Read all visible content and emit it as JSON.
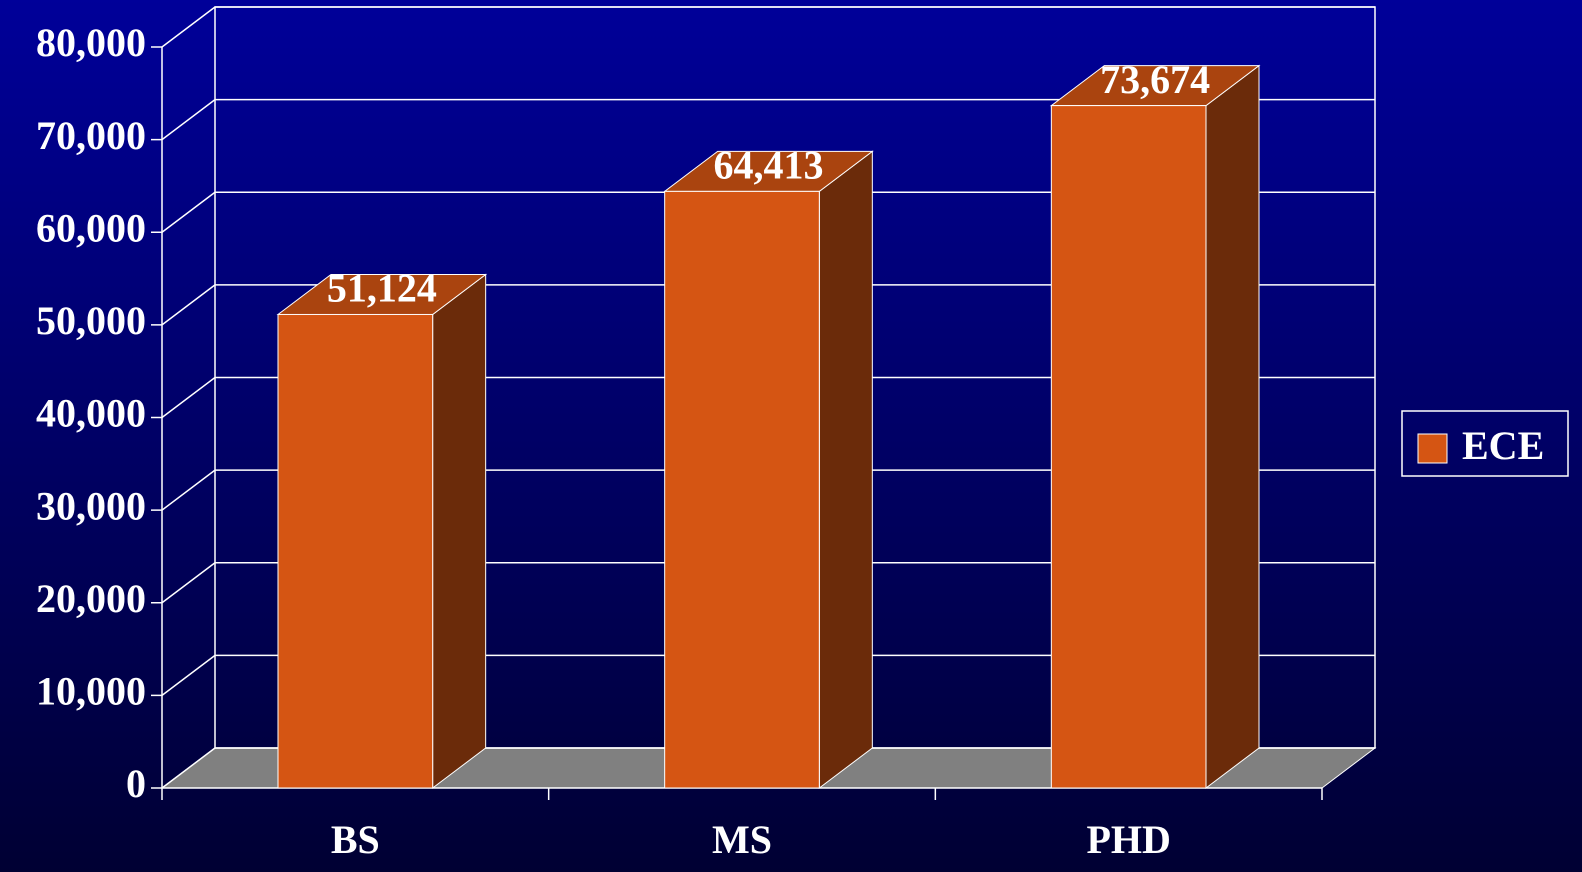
{
  "chart_data": {
    "type": "bar3d",
    "categories": [
      "BS",
      "MS",
      "PHD"
    ],
    "series": [
      {
        "name": "ECE",
        "color": "#d55513",
        "values": [
          51124,
          64413,
          73674
        ],
        "value_labels": [
          "51,124",
          "64,413",
          "73,674"
        ]
      }
    ],
    "ylim": [
      0,
      80000
    ],
    "yticks": [
      0,
      {
        "value": 10000,
        "label": "10,000"
      },
      {
        "value": 20000,
        "label": "20,000"
      },
      {
        "value": 30000,
        "label": "30,000"
      },
      {
        "value": 40000,
        "label": "40,000"
      },
      {
        "value": 50000,
        "label": "50,000"
      },
      {
        "value": 60000,
        "label": "60,000"
      },
      {
        "value": 70000,
        "label": "70,000"
      },
      {
        "value": 80000,
        "label": "80,000"
      }
    ],
    "grid": true,
    "legend": "right"
  }
}
